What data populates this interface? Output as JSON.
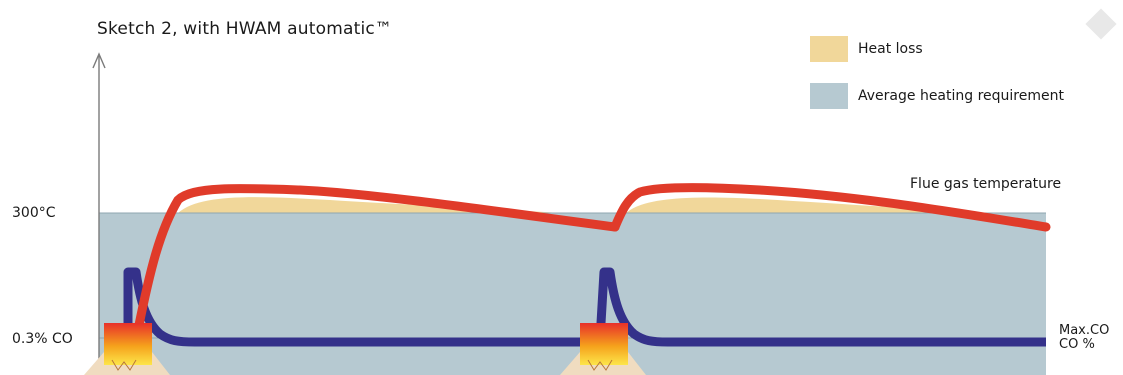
{
  "title": "Sketch 2, with HWAM automatic™",
  "legend": [
    {
      "label": "Heat loss",
      "color": "#f1d79a"
    },
    {
      "label": "Average heating requirement",
      "color": "#b6c9d1"
    }
  ],
  "labels": {
    "temp_300": "300°C",
    "co_03": "0.3% CO",
    "flue_gas": "Flue gas temperature",
    "max_co": "Max.CO",
    "co_percent": "CO %"
  },
  "colors": {
    "heat_loss": "#f1d79a",
    "heating_requirement": "#b6c9d1",
    "flue_curve": "#e03b2a",
    "co_curve": "#34318a",
    "axis": "#7a7a7a"
  },
  "icons": [
    "fire-icon",
    "fire-icon",
    "diamond-icon"
  ]
}
